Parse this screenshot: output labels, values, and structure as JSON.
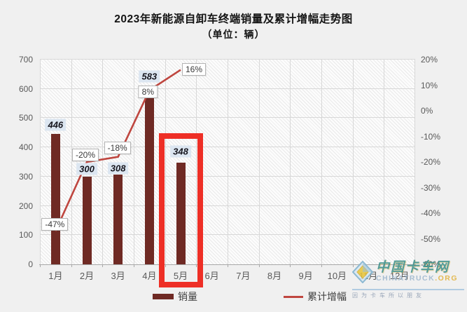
{
  "chart_data": {
    "type": "bar",
    "title": "2023年新能源自卸车终端销量及累计增幅走势图",
    "subtitle": "（单位：辆）",
    "categories": [
      "1月",
      "2月",
      "3月",
      "4月",
      "5月",
      "6月",
      "7月",
      "8月",
      "9月",
      "10月",
      "11月",
      "12月"
    ],
    "series": [
      {
        "name": "销量",
        "type": "bar",
        "color": "#6F2A24",
        "values": [
          446,
          300,
          308,
          583,
          348,
          null,
          null,
          null,
          null,
          null,
          null,
          null
        ],
        "labels": [
          "446",
          "300",
          "308",
          "583",
          "348"
        ]
      },
      {
        "name": "累计增幅",
        "type": "line",
        "color": "#BF463F",
        "values_pct": [
          -47,
          -20,
          -18,
          8,
          16
        ],
        "labels": [
          "-47%",
          "-20%",
          "-18%",
          "8%",
          "16%"
        ]
      }
    ],
    "left_axis": {
      "min": 0,
      "max": 700,
      "step": 100,
      "tick_labels": [
        "700",
        "600",
        "500",
        "400",
        "300",
        "200",
        "100",
        "0"
      ]
    },
    "right_axis": {
      "min": -60,
      "max": 20,
      "step": 10,
      "tick_labels": [
        "20%",
        "10%",
        "0%",
        "-10%",
        "-20%",
        "-30%",
        "-40%",
        "-50%",
        "-60%"
      ]
    },
    "legend_position": "bottom",
    "grid": true,
    "highlight_category": "5月",
    "highlight_color": "#EE2F26"
  },
  "watermark": {
    "brand_cn": "中国卡车网",
    "brand_en": "CHINATRUCK",
    "brand_tld": ".ORG",
    "slogan": "因为卡车所以朋友"
  }
}
